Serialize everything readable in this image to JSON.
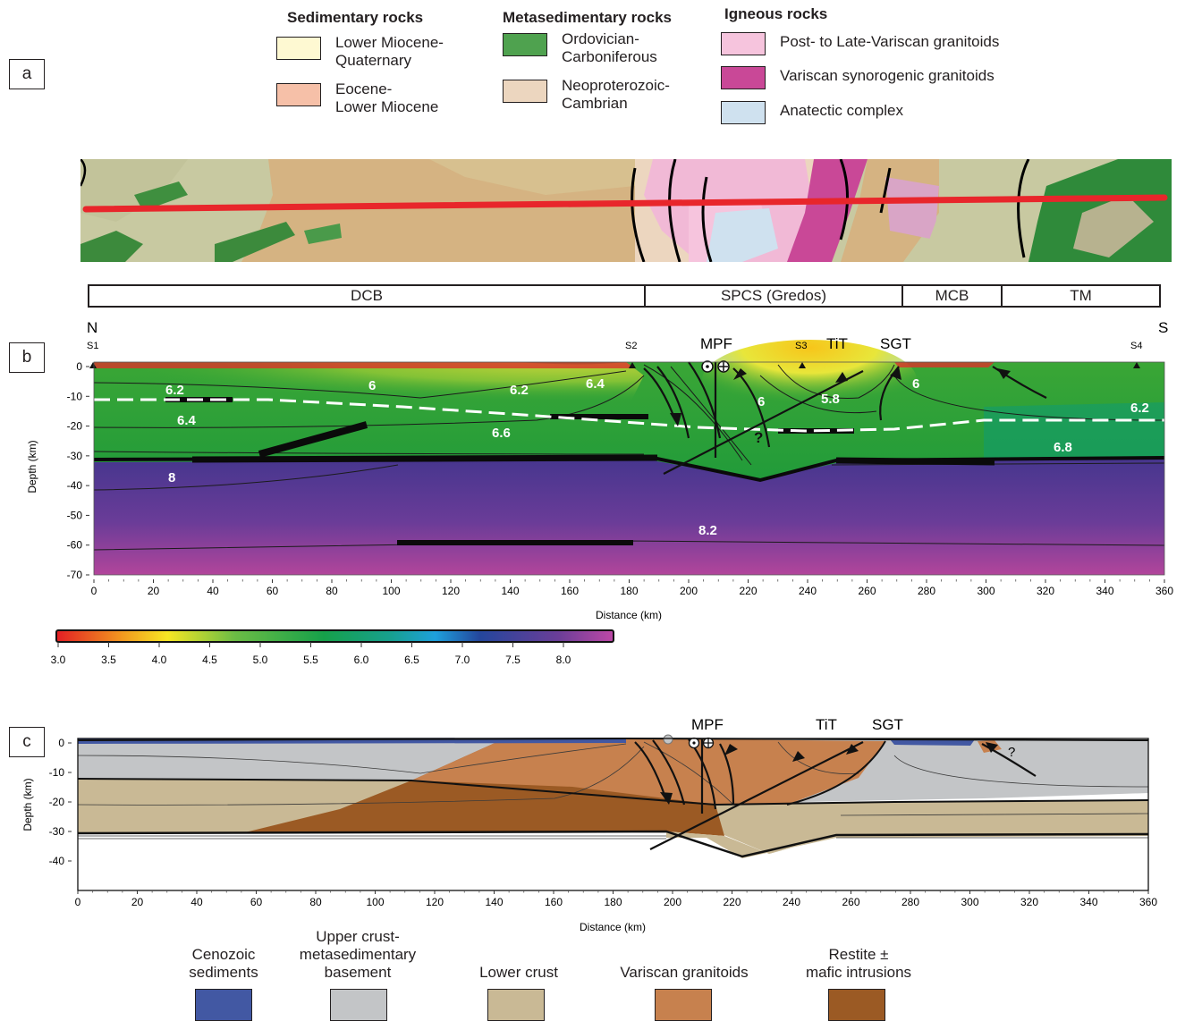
{
  "panels": {
    "a": "a",
    "b": "b",
    "c": "c"
  },
  "legend_top": {
    "groups": [
      {
        "heading": "Sedimentary rocks",
        "items": [
          {
            "label_1": "Lower Miocene-",
            "label_2": "Quaternary",
            "color": "#fef9d2"
          },
          {
            "label_1": "Eocene-",
            "label_2": "Lower Miocene",
            "color": "#f6c0a8"
          }
        ]
      },
      {
        "heading": "Metasedimentary rocks",
        "items": [
          {
            "label_1": "Ordovician-",
            "label_2": "Carboniferous",
            "color": "#4fa24f"
          },
          {
            "label_1": "Neoproterozoic-",
            "label_2": "Cambrian",
            "color": "#ecd6bf"
          }
        ]
      },
      {
        "heading": "Igneous rocks",
        "items": [
          {
            "label_1": "Post- to Late-Variscan granitoids",
            "color": "#f6c4dd"
          },
          {
            "label_1": "Variscan synorogenic granitoids",
            "color": "#c94897"
          },
          {
            "label_1": "Anatectic complex",
            "color": "#cfe1ef"
          }
        ]
      }
    ]
  },
  "domains": [
    "DCB",
    "SPCS (Gredos)",
    "MCB",
    "TM"
  ],
  "orientation": {
    "north": "N",
    "south": "S"
  },
  "stations": [
    "S1",
    "S2",
    "S3",
    "S4"
  ],
  "faults_b": {
    "mpf": "MPF",
    "tit": "TiT",
    "sgt": "SGT"
  },
  "velocity_labels": [
    "6.2",
    "6",
    "6.2",
    "6.4",
    "6",
    "5.8",
    "6",
    "6.4",
    "6.6",
    "6.2",
    "6.8",
    "8",
    "8.2"
  ],
  "question_mark": "?",
  "axes_b": {
    "ylabel": "Depth (km)",
    "xlabel": "Distance (km)",
    "yticks": [
      "0",
      "-10",
      "-20",
      "-30",
      "-40",
      "-50",
      "-60",
      "-70"
    ],
    "xticks": [
      "0",
      "20",
      "40",
      "60",
      "80",
      "100",
      "120",
      "140",
      "160",
      "180",
      "200",
      "220",
      "240",
      "260",
      "280",
      "300",
      "320",
      "340",
      "360"
    ]
  },
  "colorbar": {
    "ticks": [
      "3.0",
      "3.5",
      "4.0",
      "4.5",
      "5.0",
      "5.5",
      "6.0",
      "6.5",
      "7.0",
      "7.5",
      "8.0"
    ]
  },
  "faults_c": {
    "mpf": "MPF",
    "tit": "TiT",
    "sgt": "SGT"
  },
  "axes_c": {
    "ylabel": "Depth (km)",
    "xlabel": "Distance (km)",
    "yticks": [
      "0",
      "-10",
      "-20",
      "-30",
      "-40"
    ],
    "xticks": [
      "0",
      "20",
      "40",
      "60",
      "80",
      "100",
      "120",
      "140",
      "160",
      "180",
      "200",
      "220",
      "240",
      "260",
      "280",
      "300",
      "320",
      "340",
      "360"
    ]
  },
  "legend_bottom": [
    {
      "label_1": "Cenozoic",
      "label_2": "sediments",
      "color": "#4258a3"
    },
    {
      "label_1": "Upper crust-",
      "label_2": "metasedimentary",
      "label_3": "basement",
      "color": "#c3c5c7"
    },
    {
      "label_1": "Lower crust",
      "color": "#c9b995"
    },
    {
      "label_1": "Variscan granitoids",
      "color": "#c7814e"
    },
    {
      "label_1": "Restite ±",
      "label_2": "mafic intrusions",
      "color": "#9b5a24"
    }
  ]
}
